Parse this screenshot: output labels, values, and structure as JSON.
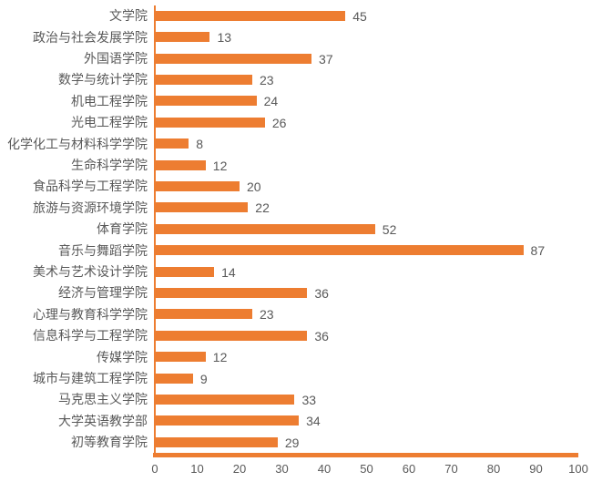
{
  "chart_data": {
    "type": "bar",
    "orientation": "horizontal",
    "title": "",
    "xlabel": "",
    "ylabel": "",
    "categories": [
      "文学院",
      "政治与社会发展学院",
      "外国语学院",
      "数学与统计学院",
      "机电工程学院",
      "光电工程学院",
      "化学化工与材料科学学院",
      "生命科学学院",
      "食品科学与工程学院",
      "旅游与资源环境学院",
      "体育学院",
      "音乐与舞蹈学院",
      "美术与艺术设计学院",
      "经济与管理学院",
      "心理与教育科学学院",
      "信息科学与工程学院",
      "传媒学院",
      "城市与建筑工程学院",
      "马克思主义学院",
      "大学英语教学部",
      "初等教育学院"
    ],
    "values": [
      45,
      13,
      37,
      23,
      24,
      26,
      8,
      12,
      20,
      22,
      52,
      87,
      14,
      36,
      23,
      36,
      12,
      9,
      33,
      34,
      29
    ],
    "data_labels_visible": true,
    "xlim": [
      0,
      100
    ],
    "x_ticks": [
      0,
      10,
      20,
      30,
      40,
      50,
      60,
      70,
      80,
      90,
      100
    ],
    "grid": false,
    "legend": false,
    "bar_color": "#ED7D31",
    "axis_color": "#ED7D31",
    "text_color": "#595959",
    "background_color": "#FFFFFF"
  }
}
